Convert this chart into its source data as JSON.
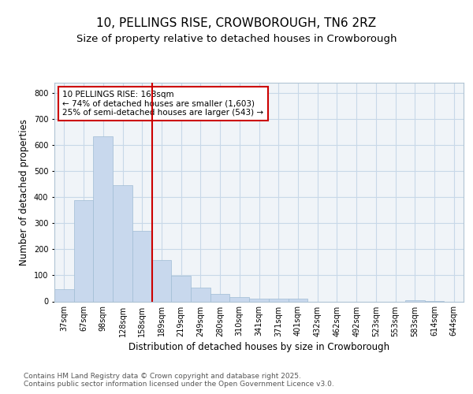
{
  "title": "10, PELLINGS RISE, CROWBOROUGH, TN6 2RZ",
  "subtitle": "Size of property relative to detached houses in Crowborough",
  "xlabel": "Distribution of detached houses by size in Crowborough",
  "ylabel": "Number of detached properties",
  "categories": [
    "37sqm",
    "67sqm",
    "98sqm",
    "128sqm",
    "158sqm",
    "189sqm",
    "219sqm",
    "249sqm",
    "280sqm",
    "310sqm",
    "341sqm",
    "371sqm",
    "401sqm",
    "432sqm",
    "462sqm",
    "492sqm",
    "523sqm",
    "553sqm",
    "583sqm",
    "614sqm",
    "644sqm"
  ],
  "values": [
    47,
    390,
    635,
    445,
    270,
    160,
    97,
    52,
    30,
    18,
    10,
    12,
    10,
    0,
    0,
    0,
    0,
    0,
    5,
    2,
    0
  ],
  "bar_color": "#c8d8ed",
  "bar_edgecolor": "#a0bcd4",
  "plot_bgcolor": "#f0f4f8",
  "background_color": "#ffffff",
  "grid_color": "#c8d8e8",
  "vline_x": 4.5,
  "vline_color": "#cc0000",
  "annotation_text": "10 PELLINGS RISE: 168sqm\n← 74% of detached houses are smaller (1,603)\n25% of semi-detached houses are larger (543) →",
  "annotation_box_color": "#cc0000",
  "footer": "Contains HM Land Registry data © Crown copyright and database right 2025.\nContains public sector information licensed under the Open Government Licence v3.0.",
  "ylim": [
    0,
    840
  ],
  "yticks": [
    0,
    100,
    200,
    300,
    400,
    500,
    600,
    700,
    800
  ],
  "title_fontsize": 11,
  "subtitle_fontsize": 9.5,
  "label_fontsize": 8.5,
  "tick_fontsize": 7,
  "footer_fontsize": 6.5,
  "annotation_fontsize": 7.5
}
